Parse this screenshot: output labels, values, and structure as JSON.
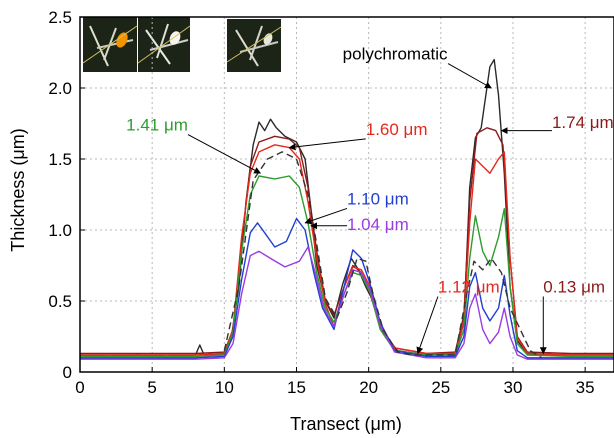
{
  "chart_data": {
    "type": "line",
    "xlabel": "Transect (μm)",
    "ylabel": "Thickness (μm)",
    "xlim": [
      0,
      37
    ],
    "ylim": [
      0,
      2.5
    ],
    "xticks": [
      "0",
      "5",
      "10",
      "15",
      "20",
      "25",
      "30",
      "35"
    ],
    "yticks": [
      "0",
      "0.5",
      "1.0",
      "1.5",
      "2.0",
      "2.5"
    ],
    "grid": true,
    "series": [
      {
        "name": "polychromatic",
        "color": "#2a2a2a",
        "dashed": false,
        "points": [
          [
            0,
            0.12
          ],
          [
            2,
            0.11
          ],
          [
            4,
            0.12
          ],
          [
            6,
            0.11
          ],
          [
            8,
            0.12
          ],
          [
            8.3,
            0.19
          ],
          [
            8.6,
            0.12
          ],
          [
            10,
            0.13
          ],
          [
            10.5,
            0.25
          ],
          [
            11,
            0.6
          ],
          [
            11.5,
            1.2
          ],
          [
            12,
            1.6
          ],
          [
            12.4,
            1.76
          ],
          [
            12.8,
            1.7
          ],
          [
            13.2,
            1.78
          ],
          [
            13.6,
            1.72
          ],
          [
            14.2,
            1.66
          ],
          [
            15,
            1.62
          ],
          [
            15.6,
            1.5
          ],
          [
            16,
            1.15
          ],
          [
            16.4,
            0.75
          ],
          [
            17,
            0.5
          ],
          [
            17.6,
            0.38
          ],
          [
            18.2,
            0.62
          ],
          [
            18.8,
            0.8
          ],
          [
            19.3,
            0.72
          ],
          [
            19.8,
            0.6
          ],
          [
            20.3,
            0.5
          ],
          [
            21,
            0.28
          ],
          [
            22,
            0.15
          ],
          [
            24,
            0.12
          ],
          [
            26,
            0.13
          ],
          [
            26.6,
            0.35
          ],
          [
            27,
            1.3
          ],
          [
            27.4,
            1.65
          ],
          [
            27.8,
            1.72
          ],
          [
            28.4,
            2.15
          ],
          [
            28.7,
            2.2
          ],
          [
            29,
            1.95
          ],
          [
            29.4,
            1.4
          ],
          [
            29.8,
            0.6
          ],
          [
            30.3,
            0.22
          ],
          [
            31,
            0.13
          ],
          [
            33,
            0.12
          ],
          [
            35,
            0.12
          ],
          [
            37,
            0.12
          ]
        ]
      },
      {
        "name": "1.74 μm",
        "color": "#8b1a1a",
        "dashed": false,
        "points": [
          [
            0,
            0.13
          ],
          [
            4,
            0.13
          ],
          [
            8,
            0.13
          ],
          [
            10,
            0.14
          ],
          [
            10.6,
            0.3
          ],
          [
            11.2,
            0.9
          ],
          [
            11.8,
            1.45
          ],
          [
            12.4,
            1.62
          ],
          [
            13.5,
            1.66
          ],
          [
            14.5,
            1.64
          ],
          [
            15.2,
            1.58
          ],
          [
            15.8,
            1.3
          ],
          [
            16.4,
            0.85
          ],
          [
            17,
            0.5
          ],
          [
            17.6,
            0.4
          ],
          [
            18.3,
            0.6
          ],
          [
            18.9,
            0.75
          ],
          [
            19.5,
            0.7
          ],
          [
            20.1,
            0.55
          ],
          [
            20.8,
            0.32
          ],
          [
            21.8,
            0.17
          ],
          [
            24,
            0.13
          ],
          [
            26,
            0.14
          ],
          [
            26.6,
            0.4
          ],
          [
            27,
            1.2
          ],
          [
            27.5,
            1.68
          ],
          [
            28.2,
            1.72
          ],
          [
            28.8,
            1.7
          ],
          [
            29.3,
            1.6
          ],
          [
            29.8,
            0.8
          ],
          [
            30.3,
            0.25
          ],
          [
            31,
            0.14
          ],
          [
            34,
            0.13
          ],
          [
            37,
            0.13
          ]
        ]
      },
      {
        "name": "1.60 μm",
        "color": "#e8281c",
        "dashed": false,
        "points": [
          [
            0,
            0.12
          ],
          [
            4,
            0.12
          ],
          [
            8,
            0.12
          ],
          [
            10,
            0.13
          ],
          [
            10.6,
            0.3
          ],
          [
            11.2,
            0.95
          ],
          [
            11.8,
            1.4
          ],
          [
            12.4,
            1.55
          ],
          [
            13.5,
            1.6
          ],
          [
            14.5,
            1.58
          ],
          [
            15.2,
            1.5
          ],
          [
            15.8,
            1.2
          ],
          [
            16.4,
            0.8
          ],
          [
            17,
            0.48
          ],
          [
            17.6,
            0.32
          ],
          [
            18.3,
            0.6
          ],
          [
            18.9,
            0.74
          ],
          [
            19.5,
            0.72
          ],
          [
            20.1,
            0.6
          ],
          [
            20.8,
            0.33
          ],
          [
            21.8,
            0.17
          ],
          [
            24,
            0.13
          ],
          [
            26,
            0.13
          ],
          [
            26.6,
            0.35
          ],
          [
            27,
            1.05
          ],
          [
            27.4,
            1.5
          ],
          [
            27.9,
            1.45
          ],
          [
            28.4,
            1.4
          ],
          [
            29,
            1.5
          ],
          [
            29.4,
            1.55
          ],
          [
            29.8,
            0.8
          ],
          [
            30.3,
            0.24
          ],
          [
            31,
            0.13
          ],
          [
            34,
            0.12
          ],
          [
            37,
            0.12
          ]
        ]
      },
      {
        "name": "1.41 μm",
        "color": "#2e9c2e",
        "dashed": false,
        "points": [
          [
            0,
            0.11
          ],
          [
            4,
            0.11
          ],
          [
            8,
            0.11
          ],
          [
            10,
            0.12
          ],
          [
            10.6,
            0.28
          ],
          [
            11.2,
            0.85
          ],
          [
            11.8,
            1.25
          ],
          [
            12.4,
            1.38
          ],
          [
            13.5,
            1.36
          ],
          [
            14.5,
            1.38
          ],
          [
            15.2,
            1.3
          ],
          [
            15.8,
            1.05
          ],
          [
            16.4,
            0.7
          ],
          [
            17,
            0.45
          ],
          [
            17.6,
            0.35
          ],
          [
            18.3,
            0.55
          ],
          [
            18.9,
            0.7
          ],
          [
            19.5,
            0.68
          ],
          [
            20.1,
            0.56
          ],
          [
            20.8,
            0.3
          ],
          [
            21.8,
            0.15
          ],
          [
            24,
            0.12
          ],
          [
            26,
            0.12
          ],
          [
            26.6,
            0.3
          ],
          [
            27,
            0.8
          ],
          [
            27.4,
            1.1
          ],
          [
            27.9,
            0.85
          ],
          [
            28.4,
            0.75
          ],
          [
            29,
            0.95
          ],
          [
            29.4,
            1.15
          ],
          [
            29.8,
            0.6
          ],
          [
            30.3,
            0.2
          ],
          [
            31,
            0.12
          ],
          [
            34,
            0.11
          ],
          [
            37,
            0.11
          ]
        ]
      },
      {
        "name": "1.10 μm",
        "color": "#1f3fd1",
        "dashed": false,
        "points": [
          [
            0,
            0.1
          ],
          [
            4,
            0.1
          ],
          [
            8,
            0.1
          ],
          [
            10,
            0.11
          ],
          [
            10.6,
            0.25
          ],
          [
            11.2,
            0.65
          ],
          [
            11.8,
            0.98
          ],
          [
            12.3,
            1.05
          ],
          [
            12.8,
            0.98
          ],
          [
            13.5,
            0.88
          ],
          [
            14.3,
            0.92
          ],
          [
            15,
            1.08
          ],
          [
            15.6,
            1.0
          ],
          [
            16.2,
            0.7
          ],
          [
            16.8,
            0.45
          ],
          [
            17.6,
            0.3
          ],
          [
            18.3,
            0.6
          ],
          [
            18.9,
            0.86
          ],
          [
            19.5,
            0.8
          ],
          [
            20.1,
            0.62
          ],
          [
            20.8,
            0.35
          ],
          [
            21.8,
            0.15
          ],
          [
            24,
            0.11
          ],
          [
            26,
            0.11
          ],
          [
            26.6,
            0.25
          ],
          [
            27,
            0.6
          ],
          [
            27.4,
            0.7
          ],
          [
            27.9,
            0.45
          ],
          [
            28.4,
            0.36
          ],
          [
            29,
            0.45
          ],
          [
            29.4,
            0.68
          ],
          [
            29.8,
            0.4
          ],
          [
            30.3,
            0.15
          ],
          [
            31,
            0.1
          ],
          [
            34,
            0.1
          ],
          [
            37,
            0.1
          ]
        ]
      },
      {
        "name": "1.04 μm",
        "color": "#9a3ce0",
        "dashed": false,
        "points": [
          [
            0,
            0.09
          ],
          [
            4,
            0.09
          ],
          [
            8,
            0.09
          ],
          [
            10,
            0.1
          ],
          [
            10.6,
            0.2
          ],
          [
            11.2,
            0.55
          ],
          [
            11.8,
            0.82
          ],
          [
            12.4,
            0.85
          ],
          [
            13.2,
            0.8
          ],
          [
            14.2,
            0.74
          ],
          [
            15.2,
            0.78
          ],
          [
            15.8,
            0.88
          ],
          [
            16.3,
            0.7
          ],
          [
            16.9,
            0.45
          ],
          [
            17.6,
            0.32
          ],
          [
            18.3,
            0.55
          ],
          [
            18.9,
            0.72
          ],
          [
            19.5,
            0.7
          ],
          [
            20.1,
            0.58
          ],
          [
            20.8,
            0.33
          ],
          [
            21.8,
            0.14
          ],
          [
            24,
            0.1
          ],
          [
            26,
            0.1
          ],
          [
            26.6,
            0.2
          ],
          [
            27,
            0.45
          ],
          [
            27.4,
            0.55
          ],
          [
            27.9,
            0.3
          ],
          [
            28.4,
            0.2
          ],
          [
            29,
            0.28
          ],
          [
            29.4,
            0.45
          ],
          [
            29.8,
            0.25
          ],
          [
            30.3,
            0.12
          ],
          [
            31,
            0.09
          ],
          [
            34,
            0.09
          ],
          [
            37,
            0.09
          ]
        ]
      },
      {
        "name": "1.12 μm",
        "color": "#333333",
        "dashed": true,
        "points": [
          [
            10,
            0.15
          ],
          [
            11,
            0.6
          ],
          [
            12,
            1.35
          ],
          [
            13,
            1.5
          ],
          [
            14,
            1.55
          ],
          [
            15,
            1.5
          ],
          [
            15.8,
            1.25
          ],
          [
            16.4,
            0.9
          ],
          [
            17,
            0.52
          ],
          [
            17.8,
            0.38
          ],
          [
            18.5,
            0.56
          ],
          [
            19.2,
            0.8
          ],
          [
            19.8,
            0.78
          ],
          [
            20.3,
            0.55
          ],
          [
            21,
            0.3
          ],
          [
            22,
            0.14
          ],
          [
            23,
            0.12
          ],
          [
            26,
            0.12
          ],
          [
            26.8,
            0.55
          ],
          [
            27.3,
            0.78
          ],
          [
            27.9,
            0.72
          ],
          [
            28.5,
            0.8
          ],
          [
            29.2,
            0.7
          ],
          [
            29.8,
            0.45
          ],
          [
            30.5,
            0.3
          ],
          [
            31.2,
            0.15
          ],
          [
            32,
            0.1
          ]
        ]
      }
    ],
    "annotations": [
      {
        "text": "polychromatic",
        "color": "#000000",
        "at": [
          18.2,
          2.2
        ],
        "target": [
          28.5,
          2.0
        ]
      },
      {
        "text": "1.41 μm",
        "color": "#2e9c2e",
        "at": [
          3.2,
          1.7
        ],
        "target": [
          12.5,
          1.4
        ]
      },
      {
        "text": "1.60 μm",
        "color": "#e8281c",
        "at": [
          19.8,
          1.67
        ],
        "target": [
          14.5,
          1.58
        ]
      },
      {
        "text": "1.74 μm",
        "color": "#8b1a1a",
        "at": [
          32.7,
          1.72
        ],
        "target": [
          29.2,
          1.7
        ]
      },
      {
        "text": "1.10 μm",
        "color": "#1f3fd1",
        "at": [
          18.5,
          1.18
        ],
        "target": [
          15.6,
          1.05
        ]
      },
      {
        "text": "1.04 μm",
        "color": "#9a3ce0",
        "at": [
          18.5,
          1.0
        ],
        "target": [
          16.0,
          1.03
        ]
      },
      {
        "text": "1.12 μm",
        "color": "#e8281c",
        "at": [
          24.8,
          0.56
        ],
        "target": [
          23.4,
          0.13
        ]
      },
      {
        "text": "0.13 μm",
        "color": "#8b1a1a",
        "at": [
          32.1,
          0.56
        ],
        "target": [
          32.1,
          0.13
        ]
      }
    ]
  }
}
